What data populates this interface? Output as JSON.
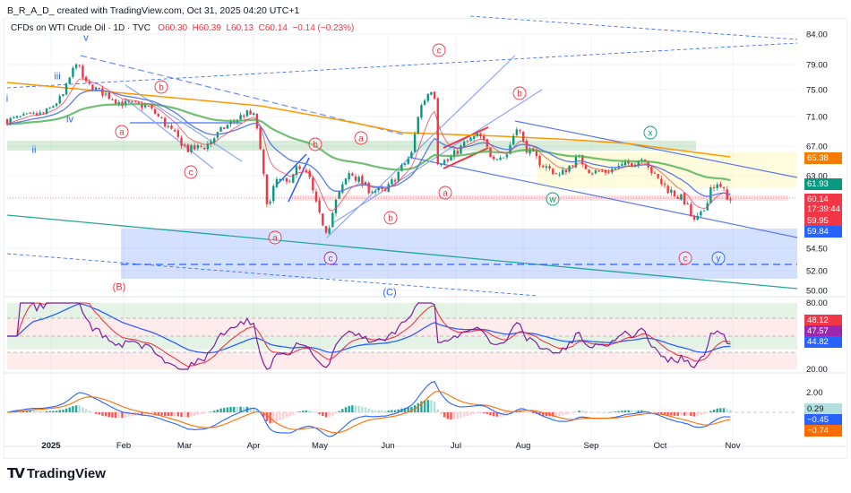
{
  "header": {
    "author_line": "B_R_A_D_ created with TradingView.com, Oct 31, 2025 04:20 UTC+1"
  },
  "legend": {
    "symbol": "CFDs on WTI Crude Oil · 1D · TVC",
    "open": "O60.30",
    "high": "H60.39",
    "low": "L60.13",
    "close": "C60.14",
    "change": "−0.14 (−0.23%)"
  },
  "price_axis": {
    "ticks": [
      "84.00",
      "79.00",
      "75.00",
      "71.00",
      "67.00",
      "63.00",
      "54.50",
      "52.00",
      "50.00"
    ],
    "tick_values": [
      84,
      79,
      75,
      71,
      67,
      63,
      54.5,
      52,
      50
    ],
    "badges": [
      {
        "label": "65.38",
        "color": "#f57c00"
      },
      {
        "label": "61.93",
        "color": "#089981"
      },
      {
        "label": "60.14",
        "sub": "17:39:44",
        "color": "#f23645"
      },
      {
        "label": "59.95",
        "color": "#f23645"
      },
      {
        "label": "59.84",
        "color": "#2962ff"
      }
    ]
  },
  "rsi_axis": {
    "ticks": [
      "80.00",
      "40.00",
      "20.00"
    ],
    "badges": [
      {
        "label": "48.12",
        "color": "#f23645"
      },
      {
        "label": "47.57",
        "color": "#9c27b0"
      },
      {
        "label": "44.82",
        "color": "#2962ff"
      }
    ]
  },
  "macd_axis": {
    "ticks": [
      "2.00"
    ],
    "badges": [
      {
        "label": "0.29",
        "color": "#b2dfdb",
        "text": "#131722"
      },
      {
        "label": "−0.45",
        "color": "#2962ff"
      },
      {
        "label": "−0.74",
        "color": "#ff6d00"
      }
    ]
  },
  "time_axis": [
    "2025",
    "Feb",
    "Mar",
    "Apr",
    "May",
    "Jun",
    "Jul",
    "Aug",
    "Sep",
    "Oct",
    "Nov"
  ],
  "wave_labels": [
    "v",
    "iii",
    "i",
    "iv",
    "ii",
    "b",
    "a",
    "c",
    "b",
    "a",
    "a",
    "c",
    "b",
    "(B)",
    "(C)",
    "c",
    "a",
    "b",
    "x",
    "w",
    "c",
    "y"
  ],
  "brand": {
    "name": "TradingView",
    "mark": "TV"
  },
  "colors": {
    "up": "#089981",
    "down": "#f23645",
    "accent": "#2962ff"
  },
  "chart_data": {
    "type": "candlestick",
    "title": "CFDs on WTI Crude Oil · 1D · TVC",
    "x_unit": "months since Jan 1 2025",
    "close_keyframes": [
      [
        -0.62,
        70.5
      ],
      [
        -0.35,
        71
      ],
      [
        -0.09,
        71.5
      ],
      [
        0.17,
        74
      ],
      [
        0.37,
        79.5
      ],
      [
        0.5,
        76
      ],
      [
        0.76,
        74.5
      ],
      [
        1.02,
        73
      ],
      [
        1.42,
        72.5
      ],
      [
        1.62,
        70.5
      ],
      [
        2.01,
        66.5
      ],
      [
        2.27,
        67
      ],
      [
        2.54,
        69.5
      ],
      [
        2.86,
        71.5
      ],
      [
        3.0,
        71
      ],
      [
        3.13,
        62
      ],
      [
        3.19,
        59
      ],
      [
        3.3,
        62.5
      ],
      [
        3.45,
        62
      ],
      [
        3.59,
        64
      ],
      [
        3.78,
        63
      ],
      [
        3.92,
        58.5
      ],
      [
        4.05,
        56.5
      ],
      [
        4.18,
        60
      ],
      [
        4.38,
        63.5
      ],
      [
        4.64,
        61.5
      ],
      [
        4.9,
        61
      ],
      [
        5.1,
        63.5
      ],
      [
        5.29,
        66
      ],
      [
        5.4,
        72
      ],
      [
        5.53,
        74.5
      ],
      [
        5.62,
        75.5
      ],
      [
        5.66,
        65
      ],
      [
        5.82,
        65
      ],
      [
        6.08,
        67.5
      ],
      [
        6.28,
        68.5
      ],
      [
        6.45,
        65.8
      ],
      [
        6.67,
        65.5
      ],
      [
        6.84,
        70
      ],
      [
        6.94,
        67
      ],
      [
        7.2,
        64.5
      ],
      [
        7.46,
        63
      ],
      [
        7.73,
        65.5
      ],
      [
        7.92,
        63.5
      ],
      [
        8.12,
        63.5
      ],
      [
        8.45,
        64.5
      ],
      [
        8.71,
        65.5
      ],
      [
        8.84,
        63
      ],
      [
        9.04,
        61.5
      ],
      [
        9.3,
        60
      ],
      [
        9.43,
        57.5
      ],
      [
        9.56,
        58.5
      ],
      [
        9.69,
        62
      ],
      [
        9.82,
        61.5
      ],
      [
        9.98,
        60.14
      ]
    ],
    "last": {
      "open": 60.3,
      "high": 60.39,
      "low": 60.13,
      "close": 60.14
    },
    "indicators": {
      "rsi": {
        "range": [
          20,
          80
        ]
      },
      "macd": {
        "last": [
          0.29,
          -0.45,
          -0.74
        ]
      }
    },
    "ylim": [
      50,
      84
    ]
  }
}
